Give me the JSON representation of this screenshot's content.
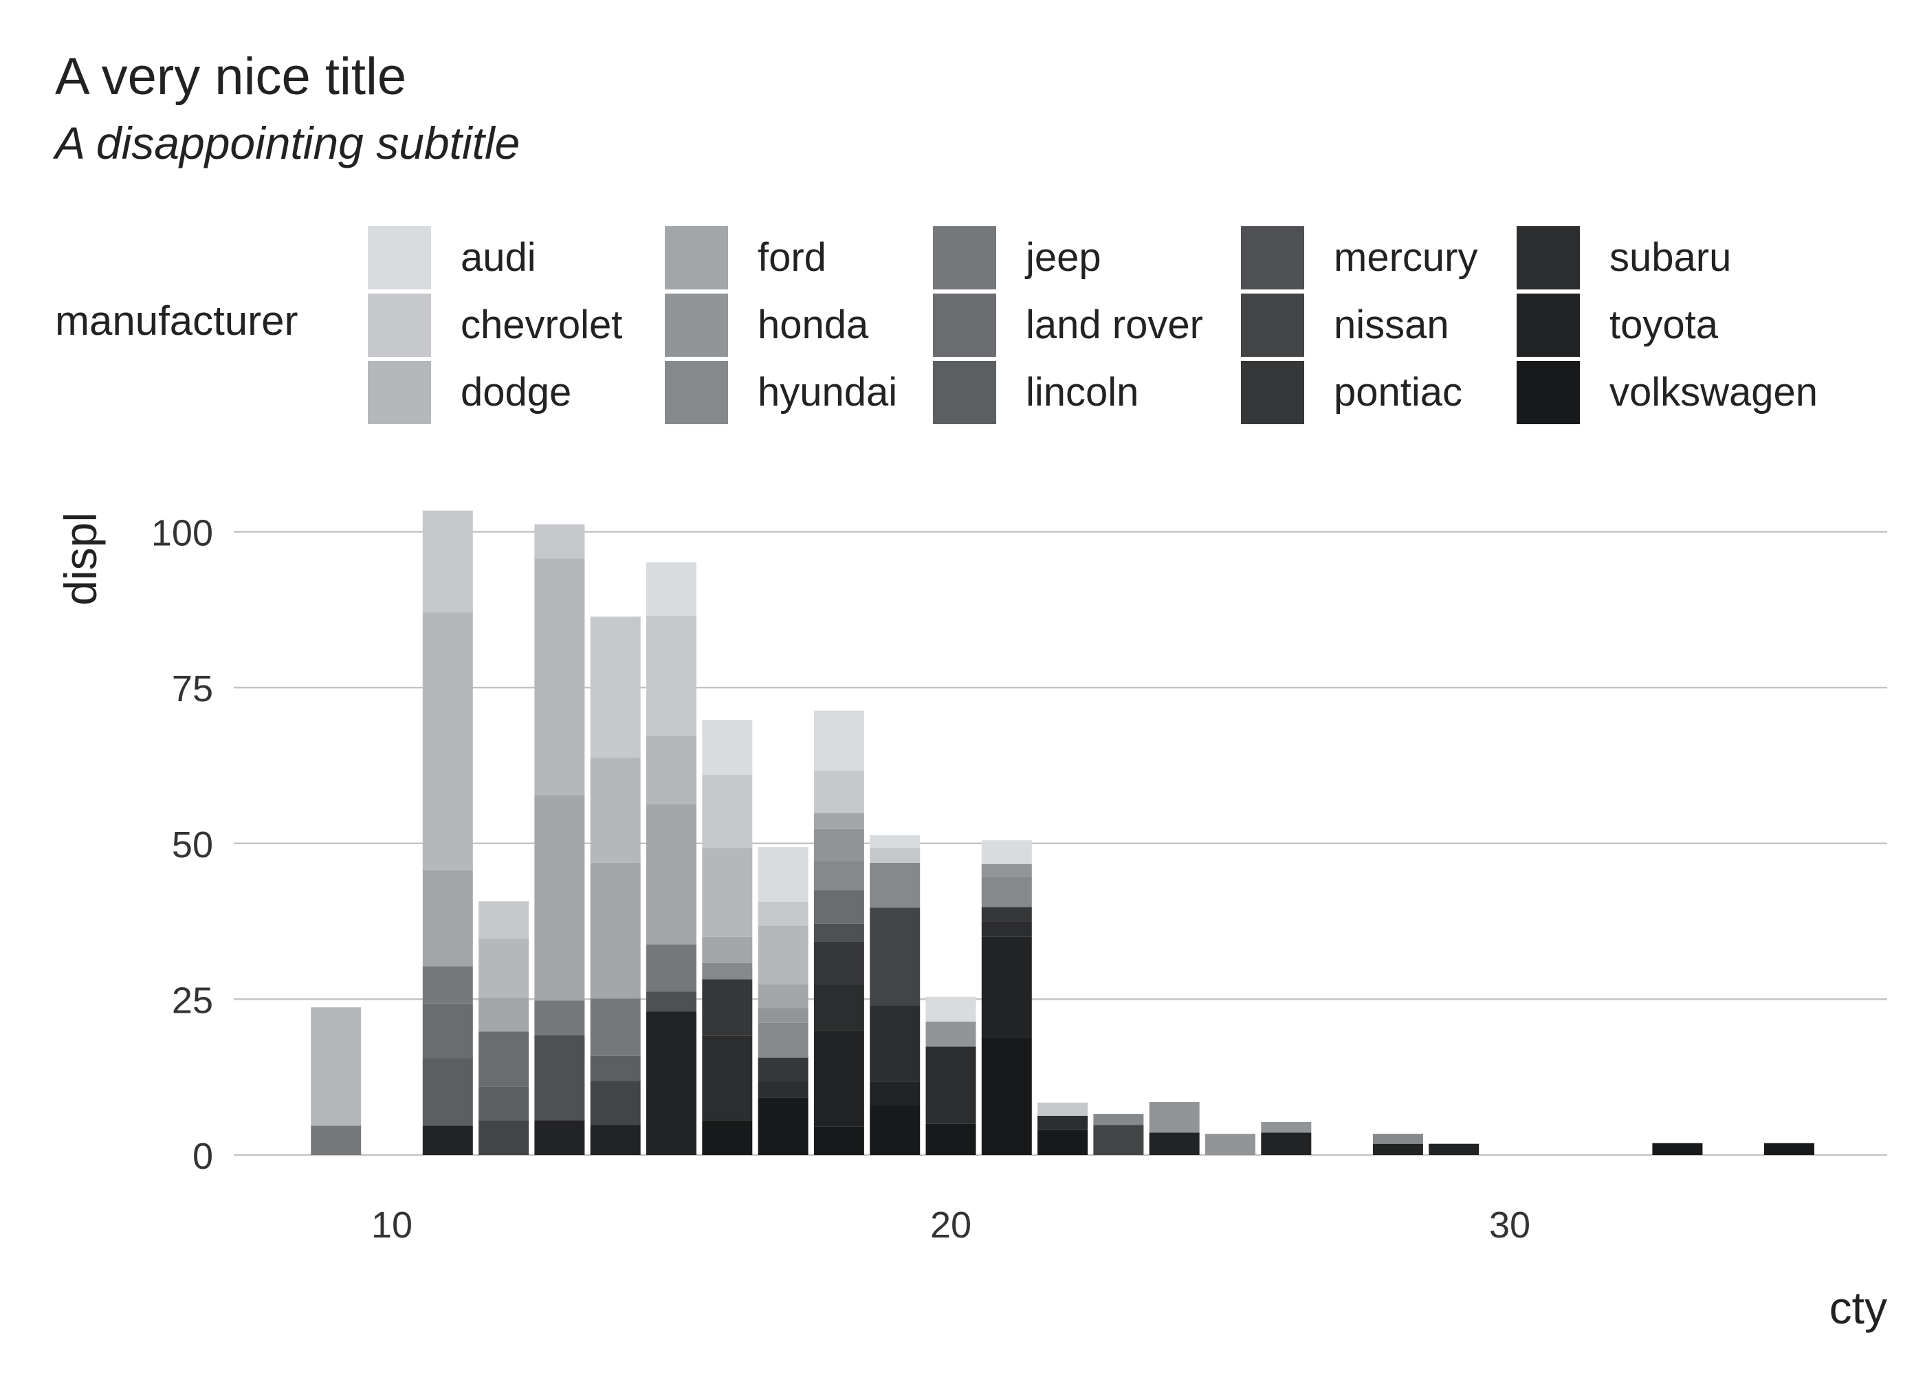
{
  "chart_data": {
    "type": "bar",
    "stacked": true,
    "title": "A very nice title",
    "subtitle": "A disappointing subtitle",
    "xlabel": "cty",
    "ylabel": "displ",
    "xlim": [
      7,
      36.7
    ],
    "ylim": [
      0,
      103
    ],
    "x_ticks": [
      10,
      20,
      30
    ],
    "y_ticks": [
      0,
      25,
      50,
      75,
      100
    ],
    "grid": "horizontal",
    "legend_title": "manufacturer",
    "legend_position": "top",
    "manufacturers": [
      "audi",
      "chevrolet",
      "dodge",
      "ford",
      "honda",
      "hyundai",
      "jeep",
      "land rover",
      "lincoln",
      "mercury",
      "nissan",
      "pontiac",
      "subaru",
      "toyota",
      "volkswagen"
    ],
    "colors": [
      "#d8dcdf",
      "#c6c8cc",
      "#b4b8ba",
      "#a3a6a9",
      "#929597",
      "#86898c",
      "#76797b",
      "#6a6c6f",
      "#5c5f62",
      "#4e5053",
      "#434446",
      "#363738",
      "#2c2d2e",
      "#222324",
      "#18191a"
    ],
    "bars": [
      {
        "x": 9,
        "segments": [
          {
            "m": "dodge",
            "v": 19.0
          },
          {
            "m": "jeep",
            "v": 4.7
          }
        ]
      },
      {
        "x": 11,
        "segments": [
          {
            "m": "chevrolet",
            "v": 16.3
          },
          {
            "m": "dodge",
            "v": 41.4
          },
          {
            "m": "ford",
            "v": 15.4
          },
          {
            "m": "jeep",
            "v": 6.0
          },
          {
            "m": "land rover",
            "v": 8.8
          },
          {
            "m": "lincoln",
            "v": 10.8
          },
          {
            "m": "toyota",
            "v": 4.7
          }
        ]
      },
      {
        "x": 12,
        "segments": [
          {
            "m": "chevrolet",
            "v": 6.0
          },
          {
            "m": "dodge",
            "v": 9.5
          },
          {
            "m": "ford",
            "v": 5.4
          },
          {
            "m": "land rover",
            "v": 8.8
          },
          {
            "m": "lincoln",
            "v": 5.4
          },
          {
            "m": "nissan",
            "v": 5.6
          }
        ]
      },
      {
        "x": 13,
        "segments": [
          {
            "m": "chevrolet",
            "v": 5.5
          },
          {
            "m": "dodge",
            "v": 38.0
          },
          {
            "m": "ford",
            "v": 32.9
          },
          {
            "m": "jeep",
            "v": 5.6
          },
          {
            "m": "mercury",
            "v": 13.6
          },
          {
            "m": "toyota",
            "v": 5.6
          }
        ]
      },
      {
        "x": 14,
        "segments": [
          {
            "m": "chevrolet",
            "v": 22.6
          },
          {
            "m": "dodge",
            "v": 16.9
          },
          {
            "m": "ford",
            "v": 21.8
          },
          {
            "m": "jeep",
            "v": 9.2
          },
          {
            "m": "lincoln",
            "v": 4.0
          },
          {
            "m": "nissan",
            "v": 7.1
          },
          {
            "m": "toyota",
            "v": 4.8
          }
        ]
      },
      {
        "x": 15,
        "segments": [
          {
            "m": "audi",
            "v": 8.6
          },
          {
            "m": "chevrolet",
            "v": 19.2
          },
          {
            "m": "dodge",
            "v": 11.0
          },
          {
            "m": "ford",
            "v": 22.5
          },
          {
            "m": "jeep",
            "v": 7.6
          },
          {
            "m": "mercury",
            "v": 3.2
          },
          {
            "m": "toyota",
            "v": 23.0
          }
        ]
      },
      {
        "x": 16,
        "segments": [
          {
            "m": "audi",
            "v": 8.8
          },
          {
            "m": "chevrolet",
            "v": 11.7
          },
          {
            "m": "dodge",
            "v": 14.3
          },
          {
            "m": "ford",
            "v": 4.2
          },
          {
            "m": "hyundai",
            "v": 2.6
          },
          {
            "m": "pontiac",
            "v": 9.1
          },
          {
            "m": "subaru",
            "v": 13.5
          },
          {
            "m": "volkswagen",
            "v": 5.6
          }
        ]
      },
      {
        "x": 17,
        "segments": [
          {
            "m": "audi",
            "v": 8.8
          },
          {
            "m": "chevrolet",
            "v": 3.8
          },
          {
            "m": "dodge",
            "v": 9.4
          },
          {
            "m": "ford",
            "v": 3.8
          },
          {
            "m": "honda",
            "v": 2.4
          },
          {
            "m": "hyundai",
            "v": 5.6
          },
          {
            "m": "pontiac",
            "v": 3.8
          },
          {
            "m": "subaru",
            "v": 2.6
          },
          {
            "m": "volkswagen",
            "v": 9.2
          }
        ]
      },
      {
        "x": 18,
        "segments": [
          {
            "m": "audi",
            "v": 9.6
          },
          {
            "m": "chevrolet",
            "v": 6.8
          },
          {
            "m": "ford",
            "v": 2.6
          },
          {
            "m": "honda",
            "v": 5.1
          },
          {
            "m": "hyundai",
            "v": 4.7
          },
          {
            "m": "land rover",
            "v": 5.4
          },
          {
            "m": "mercury",
            "v": 2.9
          },
          {
            "m": "pontiac",
            "v": 6.9
          },
          {
            "m": "subaru",
            "v": 7.3
          },
          {
            "m": "toyota",
            "v": 15.4
          },
          {
            "m": "volkswagen",
            "v": 4.6
          }
        ]
      },
      {
        "x": 19,
        "segments": [
          {
            "m": "audi",
            "v": 2.0
          },
          {
            "m": "chevrolet",
            "v": 2.4
          },
          {
            "m": "hyundai",
            "v": 7.2
          },
          {
            "m": "nissan",
            "v": 15.7
          },
          {
            "m": "subaru",
            "v": 12.3
          },
          {
            "m": "toyota",
            "v": 3.7
          },
          {
            "m": "volkswagen",
            "v": 8.0
          }
        ]
      },
      {
        "x": 20,
        "segments": [
          {
            "m": "audi",
            "v": 4.0
          },
          {
            "m": "honda",
            "v": 4.0
          },
          {
            "m": "subaru",
            "v": 12.4
          },
          {
            "m": "volkswagen",
            "v": 5.0
          }
        ]
      },
      {
        "x": 21,
        "segments": [
          {
            "m": "audi",
            "v": 3.8
          },
          {
            "m": "honda",
            "v": 2.1
          },
          {
            "m": "hyundai",
            "v": 4.8
          },
          {
            "m": "pontiac",
            "v": 2.4
          },
          {
            "m": "subaru",
            "v": 2.4
          },
          {
            "m": "toyota",
            "v": 16.1
          },
          {
            "m": "volkswagen",
            "v": 18.9
          }
        ]
      },
      {
        "x": 22,
        "segments": [
          {
            "m": "chevrolet",
            "v": 2.1
          },
          {
            "m": "subaru",
            "v": 2.3
          },
          {
            "m": "volkswagen",
            "v": 4.0
          }
        ]
      },
      {
        "x": 23,
        "segments": [
          {
            "m": "hyundai",
            "v": 1.8
          },
          {
            "m": "nissan",
            "v": 4.8
          }
        ]
      },
      {
        "x": 24,
        "segments": [
          {
            "m": "honda",
            "v": 4.9
          },
          {
            "m": "toyota",
            "v": 3.6
          }
        ]
      },
      {
        "x": 25,
        "segments": [
          {
            "m": "honda",
            "v": 3.4
          }
        ]
      },
      {
        "x": 26,
        "segments": [
          {
            "m": "honda",
            "v": 1.7
          },
          {
            "m": "toyota",
            "v": 3.6
          }
        ]
      },
      {
        "x": 28,
        "segments": [
          {
            "m": "hyundai",
            "v": 1.6
          },
          {
            "m": "toyota",
            "v": 1.8
          }
        ]
      },
      {
        "x": 29,
        "segments": [
          {
            "m": "toyota",
            "v": 1.8
          }
        ]
      },
      {
        "x": 33,
        "segments": [
          {
            "m": "volkswagen",
            "v": 1.9
          }
        ]
      },
      {
        "x": 35,
        "segments": [
          {
            "m": "volkswagen",
            "v": 1.9
          }
        ]
      }
    ]
  }
}
